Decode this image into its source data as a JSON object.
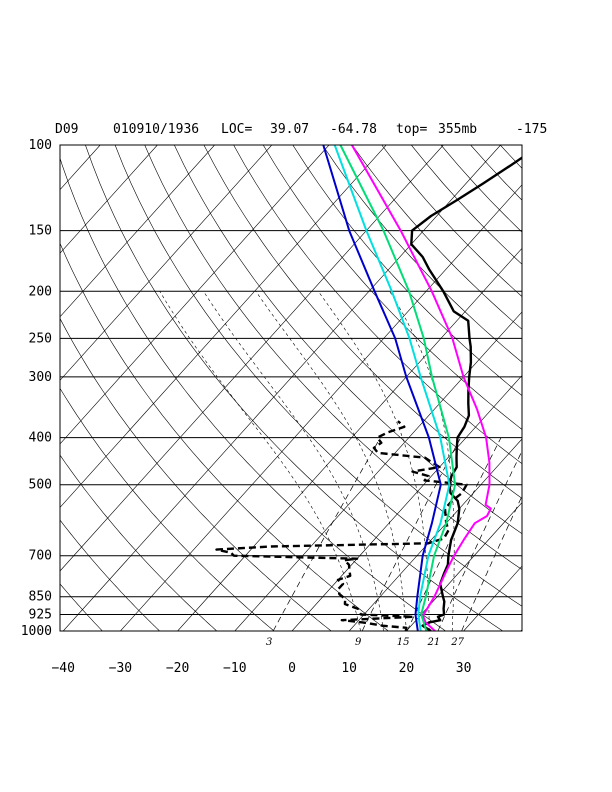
{
  "chart_data": {
    "type": "line",
    "chart_kind": "skew-T log-P sounding",
    "header": {
      "station": "D09",
      "datetime": "010910/1936",
      "loc_label": "LOC=",
      "lat": "39.07",
      "lon": "-64.78",
      "top_label": "top=",
      "top_value": "355mb",
      "extra": "-175"
    },
    "pressure_levels": [
      100,
      150,
      200,
      250,
      300,
      400,
      500,
      700,
      850,
      925,
      1000
    ],
    "pressure_labels": [
      "100",
      "150",
      "200",
      "250",
      "300",
      "400",
      "500",
      "700",
      "850",
      "925",
      "1000"
    ],
    "temperature_ticks": [
      -40,
      -30,
      -20,
      -10,
      0,
      10,
      20,
      30
    ],
    "temperature_labels": [
      "−40",
      "−30",
      "−20",
      "−10",
      "0",
      "10",
      "20",
      "30"
    ],
    "mixing_ratio_values": [
      3,
      9,
      15,
      21,
      27
    ],
    "mixing_ratio_labels": [
      "3",
      "9",
      "15",
      "21",
      "27"
    ],
    "xlim_degC": [
      -40,
      40
    ],
    "ylim_mb": [
      1000,
      100
    ],
    "y_scale": "log",
    "series": [
      {
        "color": "#000000",
        "style": "solid",
        "width": 2.4,
        "points": [
          [
            1000,
            24.3
          ],
          [
            975,
            22
          ],
          [
            960,
            22.6
          ],
          [
            950,
            24.2
          ],
          [
            935,
            23.3
          ],
          [
            925,
            24
          ],
          [
            900,
            23
          ],
          [
            870,
            22
          ],
          [
            850,
            21
          ],
          [
            800,
            18.5
          ],
          [
            760,
            17.5
          ],
          [
            730,
            16.8
          ],
          [
            700,
            15.5
          ],
          [
            650,
            13.5
          ],
          [
            600,
            12
          ],
          [
            560,
            10
          ],
          [
            540,
            8.5
          ],
          [
            520,
            6
          ],
          [
            500,
            4.5
          ],
          [
            480,
            3.5
          ],
          [
            460,
            3
          ],
          [
            440,
            1.5
          ],
          [
            420,
            0
          ],
          [
            400,
            -1.5
          ],
          [
            380,
            -2
          ],
          [
            360,
            -3
          ],
          [
            340,
            -5
          ],
          [
            320,
            -7
          ],
          [
            300,
            -9
          ],
          [
            280,
            -11
          ],
          [
            260,
            -13.5
          ],
          [
            250,
            -15
          ],
          [
            230,
            -18
          ],
          [
            220,
            -22
          ],
          [
            200,
            -27
          ],
          [
            180,
            -33
          ],
          [
            170,
            -36
          ],
          [
            160,
            -40
          ],
          [
            150,
            -42
          ],
          [
            140,
            -41
          ],
          [
            130,
            -39
          ],
          [
            120,
            -37
          ],
          [
            110,
            -35
          ],
          [
            100,
            -33
          ]
        ]
      },
      {
        "color": "#000000",
        "style": "dashed",
        "width": 2.4,
        "points": [
          [
            1000,
            19.9
          ],
          [
            985,
            19.5
          ],
          [
            975,
            15
          ],
          [
            960,
            11
          ],
          [
            950,
            7
          ],
          [
            935,
            19
          ],
          [
            925,
            9.5
          ],
          [
            910,
            8.5
          ],
          [
            900,
            8
          ],
          [
            880,
            5
          ],
          [
            860,
            4.3
          ],
          [
            840,
            2.5
          ],
          [
            820,
            1.5
          ],
          [
            800,
            1.5
          ],
          [
            785,
            0
          ],
          [
            770,
            1.5
          ],
          [
            750,
            0.5
          ],
          [
            730,
            -0.5
          ],
          [
            715,
            -2
          ],
          [
            710,
            0
          ],
          [
            700,
            -22
          ],
          [
            690,
            -23
          ],
          [
            680,
            -26
          ],
          [
            670,
            -17
          ],
          [
            660,
            10
          ],
          [
            645,
            12
          ],
          [
            620,
            11.5
          ],
          [
            600,
            10
          ],
          [
            560,
            7.5
          ],
          [
            540,
            7.5
          ],
          [
            520,
            8
          ],
          [
            500,
            7.5
          ],
          [
            490,
            -0.5
          ],
          [
            480,
            -0.5
          ],
          [
            470,
            -4
          ],
          [
            460,
            0
          ],
          [
            450,
            -2
          ],
          [
            440,
            -4
          ],
          [
            430,
            -13
          ],
          [
            420,
            -14.5
          ],
          [
            410,
            -14
          ],
          [
            400,
            -15.5
          ],
          [
            390,
            -14.5
          ],
          [
            380,
            -12.5
          ],
          [
            370,
            -14.5
          ]
        ]
      },
      {
        "color": "#ff00ff",
        "style": "solid",
        "width": 2,
        "points": [
          [
            1000,
            25
          ],
          [
            960,
            22
          ],
          [
            930,
            20.5
          ],
          [
            850,
            19.5
          ],
          [
            750,
            17.5
          ],
          [
            700,
            16.5
          ],
          [
            650,
            15.7
          ],
          [
            600,
            15
          ],
          [
            580,
            16
          ],
          [
            560,
            15.5
          ],
          [
            550,
            14
          ],
          [
            500,
            11.5
          ],
          [
            450,
            8
          ],
          [
            400,
            3.5
          ],
          [
            350,
            -2.5
          ],
          [
            300,
            -10
          ],
          [
            250,
            -18
          ],
          [
            200,
            -29
          ],
          [
            150,
            -44
          ],
          [
            100,
            -66
          ]
        ]
      },
      {
        "color": "#00dd77",
        "style": "solid",
        "width": 2,
        "points": [
          [
            1000,
            23.5
          ],
          [
            925,
            20
          ],
          [
            850,
            18
          ],
          [
            700,
            13
          ],
          [
            600,
            10
          ],
          [
            500,
            5.5
          ],
          [
            400,
            -3
          ],
          [
            300,
            -15.5
          ],
          [
            250,
            -23
          ],
          [
            200,
            -33
          ],
          [
            150,
            -47
          ],
          [
            100,
            -68
          ]
        ]
      },
      {
        "color": "#00e0e0",
        "style": "solid",
        "width": 2,
        "points": [
          [
            1000,
            22.5
          ],
          [
            925,
            19.5
          ],
          [
            850,
            17
          ],
          [
            700,
            12
          ],
          [
            600,
            9
          ],
          [
            500,
            4.5
          ],
          [
            400,
            -4.5
          ],
          [
            300,
            -17.5
          ],
          [
            250,
            -25.5
          ],
          [
            200,
            -36
          ],
          [
            150,
            -50
          ],
          [
            100,
            -69
          ]
        ]
      },
      {
        "color": "#0000cc",
        "style": "solid",
        "width": 2,
        "points": [
          [
            1000,
            22
          ],
          [
            925,
            19
          ],
          [
            850,
            16.5
          ],
          [
            700,
            11
          ],
          [
            600,
            7.5
          ],
          [
            500,
            3
          ],
          [
            400,
            -6.5
          ],
          [
            300,
            -20
          ],
          [
            250,
            -28
          ],
          [
            200,
            -39
          ],
          [
            150,
            -53
          ],
          [
            100,
            -71
          ]
        ]
      }
    ]
  }
}
